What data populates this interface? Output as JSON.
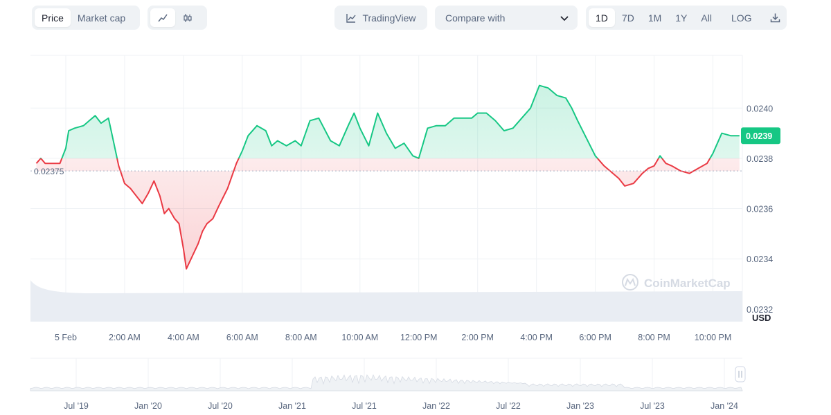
{
  "toolbar": {
    "view_tabs": [
      "Price",
      "Market cap"
    ],
    "active_view": "Price",
    "chart_mode_icons": [
      "line-chart-icon",
      "candlestick-icon"
    ],
    "trading_view_label": "TradingView",
    "compare_label": "Compare with",
    "range_buttons": [
      "1D",
      "7D",
      "1M",
      "1Y",
      "All"
    ],
    "active_range": "1D",
    "log_label": "LOG",
    "download_icon": "download-icon"
  },
  "watermark": "CoinMarketCap",
  "colors": {
    "up": "#16c784",
    "down": "#ea3943",
    "grid": "#eff2f5",
    "axis_text": "#58667e"
  },
  "chart_data": {
    "type": "line",
    "title": "",
    "xlabel": "",
    "ylabel": "USD",
    "baseline": 0.02375,
    "baseline_label": "0.02375",
    "current_price_label": "0.0239",
    "ylim": [
      0.02312,
      0.02422
    ],
    "y_ticks": [
      "0.0240",
      "0.0238",
      "0.0236",
      "0.0234",
      "0.0232"
    ],
    "y_tick_values": [
      0.024,
      0.0238,
      0.0236,
      0.0234,
      0.0232
    ],
    "x_ticks": [
      "5 Feb",
      "2:00 AM",
      "4:00 AM",
      "6:00 AM",
      "8:00 AM",
      "10:00 AM",
      "12:00 PM",
      "2:00 PM",
      "4:00 PM",
      "6:00 PM",
      "8:00 PM",
      "10:00 PM"
    ],
    "x_tick_hours": [
      0,
      2,
      4,
      6,
      8,
      10,
      12,
      14,
      16,
      18,
      20,
      22
    ],
    "xlim_hours": [
      -1.2,
      23.0
    ],
    "series": [
      {
        "x": [
          -1.0,
          -0.85,
          -0.7,
          -0.2,
          0.0,
          0.1,
          0.3,
          0.6,
          0.8,
          1.0,
          1.2,
          1.45,
          1.6,
          1.8,
          2.0,
          2.2,
          2.4,
          2.6,
          2.8,
          3.0,
          3.2,
          3.35,
          3.5,
          3.7,
          3.85,
          4.0,
          4.1,
          4.3,
          4.5,
          4.65,
          4.8,
          5.0,
          5.2,
          5.5,
          5.8,
          6.0,
          6.2,
          6.5,
          6.8,
          7.0,
          7.2,
          7.5,
          7.8,
          8.0,
          8.3,
          8.6,
          9.0,
          9.3,
          9.6,
          9.8,
          10.0,
          10.3,
          10.6,
          10.9,
          11.2,
          11.5,
          11.8,
          12.0,
          12.3,
          12.6,
          12.9,
          13.2,
          13.5,
          13.8,
          14.0,
          14.3,
          14.6,
          14.9,
          15.2,
          15.5,
          15.8,
          16.1,
          16.4,
          16.7,
          17.0,
          17.2,
          17.4,
          17.7,
          18.0,
          18.3,
          18.6,
          18.8,
          19.0,
          19.3,
          19.6,
          19.8,
          20.0,
          20.2,
          20.4,
          20.6,
          20.9,
          21.2,
          21.5,
          21.8,
          22.0,
          22.3,
          22.6,
          22.9
        ],
        "y": [
          0.02378,
          0.0238,
          0.02378,
          0.02378,
          0.02384,
          0.02391,
          0.02392,
          0.02393,
          0.02395,
          0.02397,
          0.02394,
          0.02396,
          0.02388,
          0.02377,
          0.0237,
          0.02368,
          0.02365,
          0.02362,
          0.02366,
          0.02371,
          0.02365,
          0.02358,
          0.0236,
          0.02356,
          0.02354,
          0.02344,
          0.02336,
          0.02341,
          0.02346,
          0.02351,
          0.02354,
          0.02356,
          0.02361,
          0.02368,
          0.02378,
          0.02383,
          0.02389,
          0.02393,
          0.02391,
          0.02385,
          0.02387,
          0.02385,
          0.02387,
          0.02385,
          0.02395,
          0.02396,
          0.02387,
          0.02385,
          0.02393,
          0.02398,
          0.02392,
          0.02385,
          0.02398,
          0.0239,
          0.02384,
          0.02386,
          0.02381,
          0.0238,
          0.02392,
          0.02393,
          0.02393,
          0.02396,
          0.02396,
          0.02396,
          0.02398,
          0.02398,
          0.02395,
          0.02391,
          0.02392,
          0.02396,
          0.024,
          0.02409,
          0.02408,
          0.02405,
          0.02404,
          0.024,
          0.02395,
          0.02388,
          0.02381,
          0.02377,
          0.02374,
          0.02372,
          0.02369,
          0.0237,
          0.02374,
          0.02376,
          0.02377,
          0.02381,
          0.02378,
          0.02377,
          0.02375,
          0.02374,
          0.02376,
          0.02378,
          0.02382,
          0.0239,
          0.02389,
          0.02389
        ]
      }
    ]
  },
  "history_strip": {
    "x_ticks": [
      "Jul '19",
      "Jan '20",
      "Jul '20",
      "Jan '21",
      "Jul '21",
      "Jan '22",
      "Jul '22",
      "Jan '23",
      "Jul '23",
      "Jan '24"
    ]
  }
}
